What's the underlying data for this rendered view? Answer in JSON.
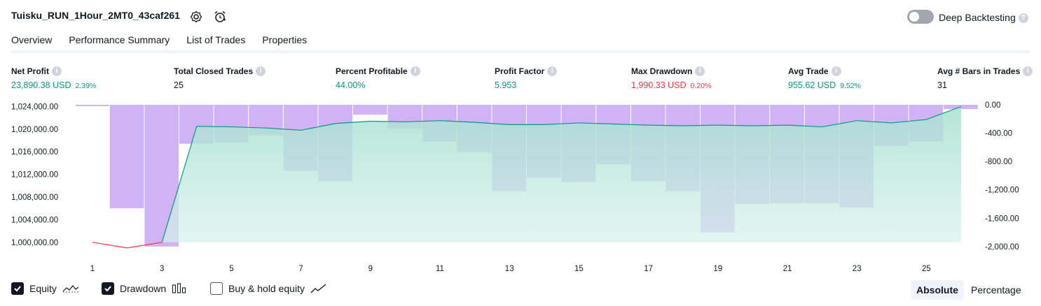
{
  "header": {
    "title": "Tuisku_RUN_1Hour_2MT0_43caf261",
    "deep_backtesting_label": "Deep Backtesting",
    "deep_backtesting_enabled": false
  },
  "tabs": [
    {
      "label": "Overview",
      "active": true
    },
    {
      "label": "Performance Summary",
      "active": false
    },
    {
      "label": "List of Trades",
      "active": false
    },
    {
      "label": "Properties",
      "active": false
    }
  ],
  "stats": [
    {
      "label": "Net Profit",
      "value": "23,890.38 USD",
      "pct": "2.39%",
      "color": "#089981"
    },
    {
      "label": "Total Closed Trades",
      "value": "25",
      "pct": "",
      "color": "#131722"
    },
    {
      "label": "Percent Profitable",
      "value": "44.00%",
      "pct": "",
      "color": "#089981"
    },
    {
      "label": "Profit Factor",
      "value": "5.953",
      "pct": "",
      "color": "#089981"
    },
    {
      "label": "Max Drawdown",
      "value": "1,990.33 USD",
      "pct": "0.20%",
      "color": "#f23645"
    },
    {
      "label": "Avg Trade",
      "value": "955.62 USD",
      "pct": "9.52%",
      "color": "#089981"
    },
    {
      "label": "Avg # Bars in Trades",
      "value": "31",
      "pct": "",
      "color": "#131722"
    }
  ],
  "legend": {
    "equity_label": "Equity",
    "equity_checked": true,
    "drawdown_label": "Drawdown",
    "drawdown_checked": true,
    "buyhold_label": "Buy & hold equity",
    "buyhold_checked": false
  },
  "view_toggle": {
    "absolute_label": "Absolute",
    "percentage_label": "Percentage",
    "selected": "Absolute"
  },
  "chart_data": {
    "type": "line",
    "x_ticks": [
      "1",
      "3",
      "5",
      "7",
      "9",
      "11",
      "13",
      "15",
      "17",
      "19",
      "21",
      "23",
      "25"
    ],
    "left_axis": {
      "ticks": [
        "1,024,000.00",
        "1,020,000.00",
        "1,016,000.00",
        "1,012,000.00",
        "1,008,000.00",
        "1,004,000.00",
        "1,000,000.00"
      ],
      "range": [
        998000,
        1024300
      ]
    },
    "right_axis": {
      "ticks": [
        "0.00",
        "-400.00",
        "-800.00",
        "-1,200.00",
        "-1,600.00",
        "-2,000.00"
      ],
      "range": [
        -2100,
        0
      ]
    },
    "equity": {
      "x": [
        1,
        2,
        3,
        4,
        5,
        6,
        7,
        8,
        9,
        10,
        11,
        12,
        13,
        14,
        15,
        16,
        17,
        18,
        19,
        20,
        21,
        22,
        23,
        24,
        25,
        26
      ],
      "values": [
        1000000,
        999000,
        1000000,
        1020500,
        1020400,
        1020200,
        1019800,
        1021000,
        1021400,
        1021300,
        1021500,
        1021200,
        1020800,
        1020800,
        1021100,
        1020900,
        1020700,
        1020600,
        1020700,
        1020600,
        1020700,
        1020400,
        1021500,
        1021100,
        1021700,
        1024000
      ],
      "positive_color": "#089981",
      "negative_color": "#f23645"
    },
    "drawdown": {
      "x": [
        1,
        2,
        3,
        4,
        5,
        6,
        7,
        8,
        9,
        10,
        11,
        12,
        13,
        14,
        15,
        16,
        17,
        18,
        19,
        20,
        21,
        22,
        23,
        24,
        25,
        26
      ],
      "values": [
        -20,
        -1460,
        -2000,
        -550,
        -530,
        -430,
        -930,
        -1080,
        -140,
        -340,
        -520,
        -670,
        -1220,
        -1030,
        -1090,
        -840,
        -1080,
        -1220,
        -1800,
        -1400,
        -1390,
        -1390,
        -1450,
        -580,
        -520,
        -60
      ],
      "color": "#cfb3f5"
    }
  }
}
